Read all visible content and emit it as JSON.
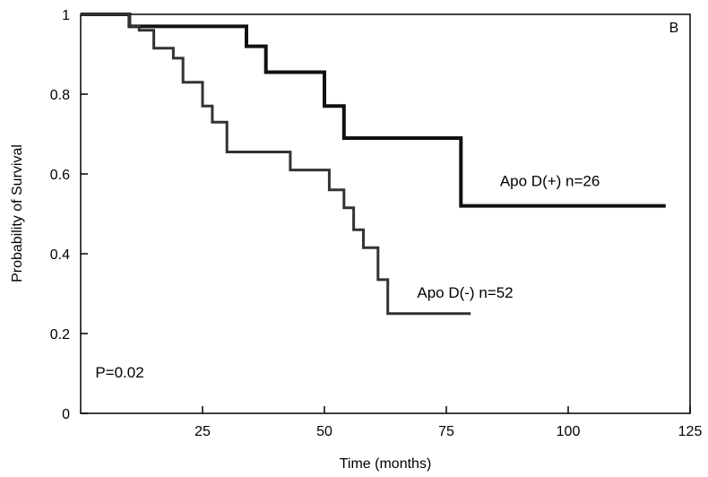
{
  "chart_data": {
    "type": "line",
    "subtype": "kaplan-meier step",
    "panel_label": "B",
    "xlabel": "Time (months)",
    "ylabel": "Probability of Survival",
    "xlim": [
      0,
      125
    ],
    "ylim": [
      0,
      1
    ],
    "x_ticks": [
      25,
      50,
      75,
      100,
      125
    ],
    "x_tick_labels": [
      "25",
      "50",
      "75",
      "100",
      "125"
    ],
    "y_ticks": [
      0,
      0.2,
      0.4,
      0.6,
      0.8,
      1
    ],
    "y_tick_labels": [
      "0",
      "0.2",
      "0.4",
      "0.6",
      "0.8",
      "1"
    ],
    "grid": false,
    "annotations": [
      {
        "text": "P=0.02",
        "x": 3,
        "y": 0.09
      }
    ],
    "series": [
      {
        "name": "Apo D(+) n=26",
        "label_at": {
          "x": 86,
          "y": 0.57
        },
        "stroke_width": 4,
        "color": "#111111",
        "x": [
          0,
          10,
          10,
          34,
          34,
          38,
          38,
          43,
          43,
          50,
          50,
          54,
          54,
          78,
          78,
          120
        ],
        "y": [
          1,
          1,
          0.97,
          0.97,
          0.92,
          0.92,
          0.855,
          0.855,
          0.855,
          0.855,
          0.77,
          0.77,
          0.69,
          0.69,
          0.52,
          0.52
        ]
      },
      {
        "name": "Apo D(-) n=52",
        "label_at": {
          "x": 69,
          "y": 0.29
        },
        "stroke_width": 3,
        "color": "#333333",
        "x": [
          0,
          10,
          10,
          12,
          12,
          15,
          15,
          19,
          19,
          21,
          21,
          25,
          25,
          27,
          27,
          30,
          30,
          43,
          43,
          51,
          51,
          54,
          54,
          56,
          56,
          58,
          58,
          61,
          61,
          63,
          63,
          80
        ],
        "y": [
          1,
          1,
          0.97,
          0.97,
          0.96,
          0.96,
          0.915,
          0.915,
          0.89,
          0.89,
          0.83,
          0.83,
          0.77,
          0.77,
          0.73,
          0.73,
          0.655,
          0.655,
          0.61,
          0.61,
          0.56,
          0.56,
          0.515,
          0.515,
          0.46,
          0.46,
          0.415,
          0.415,
          0.335,
          0.335,
          0.25,
          0.25
        ]
      }
    ]
  }
}
